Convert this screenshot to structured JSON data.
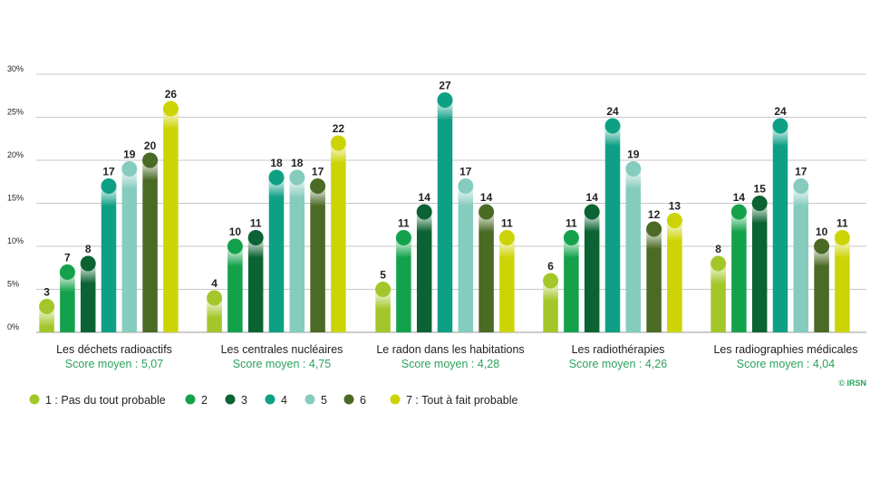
{
  "chart_data": {
    "type": "bar",
    "categories": [
      "Les déchets radioactifs",
      "Les centrales nucléaires",
      "Le radon dans les habitations",
      "Les radiothérapies",
      "Les radiographies médicales"
    ],
    "scores": [
      "Score moyen : 5,07",
      "Score moyen : 4,75",
      "Score moyen : 4,28",
      "Score moyen : 4,26",
      "Score moyen : 4,04"
    ],
    "series": [
      {
        "name": "1 : Pas du tout probable",
        "color": "#a3c72a",
        "values": [
          3,
          4,
          5,
          6,
          8
        ]
      },
      {
        "name": "2",
        "color": "#13a24b",
        "values": [
          7,
          10,
          11,
          11,
          14
        ]
      },
      {
        "name": "3",
        "color": "#0b6232",
        "values": [
          8,
          11,
          14,
          14,
          15
        ]
      },
      {
        "name": "4",
        "color": "#0ea085",
        "values": [
          17,
          18,
          27,
          24,
          24
        ]
      },
      {
        "name": "5",
        "color": "#86ccbe",
        "values": [
          19,
          18,
          17,
          19,
          17
        ]
      },
      {
        "name": "6",
        "color": "#4a6a25",
        "values": [
          20,
          17,
          14,
          12,
          10
        ]
      },
      {
        "name": "7 : Tout à fait probable",
        "color": "#cdd406",
        "values": [
          26,
          22,
          11,
          13,
          11
        ]
      }
    ],
    "yticks": [
      "0%",
      "5%",
      "10%",
      "15%",
      "20%",
      "25%",
      "30%"
    ],
    "ylim": [
      0,
      30
    ],
    "grid": true,
    "legend_position": "bottom-left",
    "credit": "© IRSN"
  }
}
